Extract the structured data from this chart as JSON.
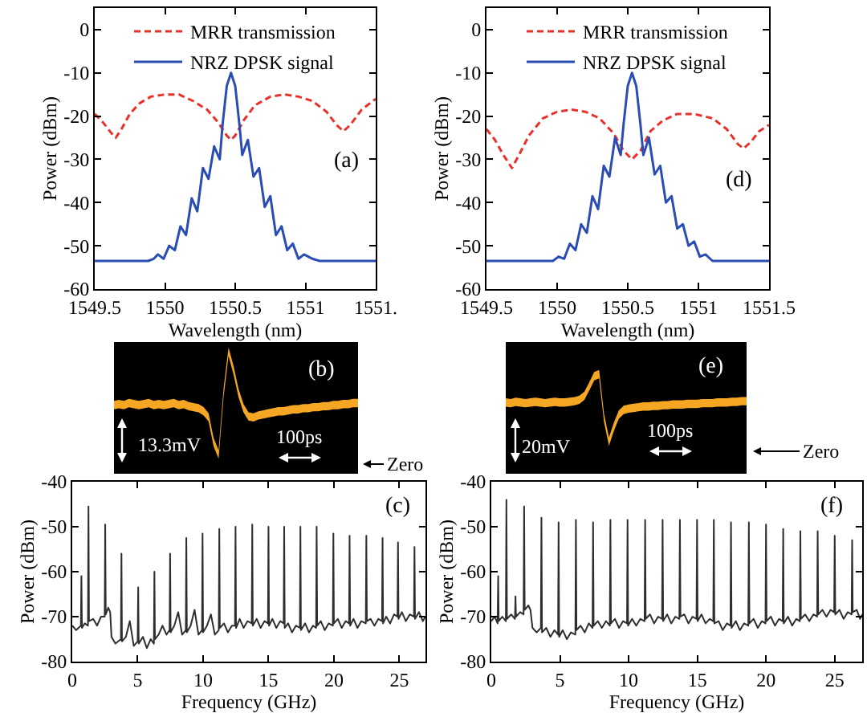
{
  "chart_data": [
    {
      "type": "line",
      "xlabel": "Wavelength (nm)",
      "ylabel": "Power (dBm)",
      "xlim": [
        1549.5,
        1551.5
      ],
      "xticks": [
        1549.5,
        1550,
        1550.5,
        1551,
        {
          "value": 1551.5,
          "label": "1551."
        }
      ],
      "ylim": [
        -60,
        5
      ],
      "yticks": [
        -60,
        -50,
        -40,
        -30,
        -20,
        -10,
        0
      ],
      "legend": "top",
      "annotations": [
        "(a)"
      ],
      "series": [
        {
          "name": "MRR transmission",
          "color": "#e8312a",
          "line_style": "dashed",
          "x": [
            1549.5,
            1549.56,
            1549.62,
            1549.65,
            1549.69,
            1549.75,
            1549.82,
            1549.9,
            1550.0,
            1550.1,
            1550.2,
            1550.3,
            1550.38,
            1550.44,
            1550.47,
            1550.5,
            1550.56,
            1550.64,
            1550.75,
            1550.85,
            1550.95,
            1551.05,
            1551.15,
            1551.22,
            1551.27,
            1551.32,
            1551.4,
            1551.5
          ],
          "values": [
            -19.5,
            -21.5,
            -24,
            -25,
            -23,
            -19.5,
            -17,
            -15.5,
            -15,
            -15,
            -16.5,
            -18.5,
            -21.5,
            -24.5,
            -25.5,
            -24.5,
            -21,
            -17.5,
            -15.5,
            -15,
            -15.5,
            -16.5,
            -19,
            -22,
            -23.5,
            -22,
            -18.5,
            -16
          ]
        },
        {
          "name": "NRZ DPSK signal",
          "color": "#2a4db3",
          "line_style": "solid",
          "x": [
            1549.5,
            1549.88,
            1549.92,
            1549.95,
            1549.99,
            1550.03,
            1550.07,
            1550.11,
            1550.15,
            1550.19,
            1550.23,
            1550.27,
            1550.31,
            1550.35,
            1550.39,
            1550.41,
            1550.44,
            1550.47,
            1550.5,
            1550.53,
            1550.55,
            1550.59,
            1550.63,
            1550.67,
            1550.71,
            1550.75,
            1550.79,
            1550.83,
            1550.87,
            1550.91,
            1550.95,
            1550.99,
            1551.05,
            1551.1,
            1551.5
          ],
          "values": [
            -53.5,
            -53.5,
            -53,
            -52,
            -53,
            -50,
            -51,
            -45.5,
            -47.5,
            -39,
            -42,
            -32,
            -34.5,
            -27,
            -30,
            -22,
            -13,
            -10,
            -13,
            -22,
            -29,
            -25.5,
            -34,
            -32,
            -41,
            -38.5,
            -47.5,
            -45.5,
            -51,
            -49.5,
            -53,
            -52,
            -53,
            -53.5,
            -53.5
          ]
        }
      ]
    },
    {
      "type": "line",
      "xlabel": "Wavelength (nm)",
      "ylabel": "Power (dBm)",
      "xlim": [
        1549.5,
        1551.5
      ],
      "xticks": [
        1549.5,
        1550,
        1550.5,
        1551,
        1551.5
      ],
      "ylim": [
        -60,
        5
      ],
      "yticks": [
        -60,
        -50,
        -40,
        -30,
        -20,
        -10,
        0
      ],
      "legend": "top",
      "annotations": [
        "(d)"
      ],
      "series": [
        {
          "name": "MRR transmission",
          "color": "#e8312a",
          "line_style": "dashed",
          "x": [
            1549.5,
            1549.56,
            1549.62,
            1549.68,
            1549.73,
            1549.8,
            1549.9,
            1550.0,
            1550.1,
            1550.2,
            1550.3,
            1550.4,
            1550.47,
            1550.53,
            1550.59,
            1550.66,
            1550.75,
            1550.85,
            1550.97,
            1551.1,
            1551.2,
            1551.28,
            1551.32,
            1551.37,
            1551.43,
            1551.5
          ],
          "values": [
            -23,
            -25.5,
            -29,
            -32,
            -29,
            -24.5,
            -20.5,
            -19,
            -18.5,
            -19,
            -20.5,
            -24,
            -28,
            -30,
            -28,
            -23.5,
            -21,
            -19.5,
            -19.5,
            -20.5,
            -23,
            -26.5,
            -27.5,
            -26,
            -23.5,
            -22
          ]
        },
        {
          "name": "NRZ DPSK signal",
          "color": "#2a4db3",
          "line_style": "solid",
          "x": [
            1549.5,
            1549.93,
            1549.97,
            1550.01,
            1550.05,
            1550.09,
            1550.13,
            1550.17,
            1550.21,
            1550.25,
            1550.29,
            1550.33,
            1550.37,
            1550.41,
            1550.45,
            1550.47,
            1550.5,
            1550.53,
            1550.56,
            1550.59,
            1550.61,
            1550.65,
            1550.69,
            1550.73,
            1550.77,
            1550.81,
            1550.85,
            1550.89,
            1550.93,
            1550.97,
            1551.01,
            1551.05,
            1551.1,
            1551.5
          ],
          "values": [
            -53.5,
            -53.5,
            -53.5,
            -52.5,
            -53,
            -49.5,
            -51,
            -45,
            -47,
            -38.5,
            -41.5,
            -31.5,
            -34,
            -25,
            -29,
            -22,
            -13,
            -10,
            -13,
            -22,
            -29,
            -25,
            -33.5,
            -31.5,
            -40,
            -38.5,
            -46,
            -45,
            -50,
            -49,
            -52.5,
            -52,
            -53.5,
            -53.5
          ]
        }
      ]
    },
    {
      "type": "other",
      "annotations": [
        "(b)",
        "13.3mV",
        "100ps",
        "Zero"
      ]
    },
    {
      "type": "other",
      "annotations": [
        "(e)",
        "20mV",
        "100ps",
        "Zero"
      ]
    },
    {
      "type": "line",
      "xlabel": "Frequency (GHz)",
      "ylabel": "Power (dBm)",
      "xlim": [
        0,
        27
      ],
      "xticks": [
        0,
        5,
        10,
        15,
        20,
        25
      ],
      "ylim": [
        -80,
        -40
      ],
      "yticks": [
        -80,
        -70,
        -60,
        -50,
        -40
      ],
      "annotations": [
        "(c)"
      ],
      "color": "#2e2e2e",
      "x": [
        0,
        0.3,
        0.66,
        0.7,
        0.74,
        0.95,
        1.2,
        1.24,
        1.28,
        1.6,
        1.9,
        2.2,
        2.48,
        2.52,
        2.56,
        2.75,
        2.9,
        3.0,
        3.3,
        3.72,
        3.76,
        3.8,
        4.1,
        4.4,
        4.7,
        5.0,
        5.04,
        5.08,
        5.4,
        5.7,
        6.0,
        6.24,
        6.28,
        6.32,
        6.6,
        6.9,
        7.2,
        7.44,
        7.48,
        7.52,
        7.8,
        8.1,
        8.4,
        8.68,
        8.72,
        8.76,
        9.05,
        9.35,
        9.65,
        9.92,
        9.96,
        10.0,
        10.3,
        10.6,
        10.9,
        11.2,
        11.24,
        11.28,
        11.6,
        11.9,
        12.2,
        12.44,
        12.48,
        12.52,
        12.8,
        13.1,
        13.4,
        13.72,
        13.76,
        13.8,
        14.1,
        14.4,
        14.7,
        14.96,
        15.0,
        15.04,
        15.3,
        15.6,
        15.9,
        16.16,
        16.2,
        16.24,
        16.5,
        16.8,
        17.1,
        17.4,
        17.44,
        17.48,
        17.8,
        18.1,
        18.4,
        18.64,
        18.68,
        18.72,
        19.0,
        19.3,
        19.6,
        19.92,
        19.96,
        20.0,
        20.3,
        20.6,
        20.9,
        21.16,
        21.2,
        21.24,
        21.5,
        21.8,
        22.1,
        22.44,
        22.48,
        22.52,
        22.8,
        23.1,
        23.4,
        23.68,
        23.72,
        23.76,
        24.0,
        24.3,
        24.6,
        24.86,
        24.9,
        24.94,
        25.2,
        25.5,
        25.8,
        26.12,
        26.16,
        26.2,
        26.5,
        26.8,
        27.0
      ],
      "values": [
        -72,
        -73,
        -72,
        -61,
        -72.5,
        -71.5,
        -72,
        -45.5,
        -71,
        -70.5,
        -72,
        -70,
        -70,
        -49.5,
        -69.5,
        -68,
        -69,
        -74.5,
        -76,
        -75,
        -56,
        -75.5,
        -74.5,
        -71,
        -76.5,
        -75.5,
        -63.5,
        -76,
        -74.5,
        -77,
        -75,
        -76,
        -60,
        -75,
        -74,
        -72,
        -74,
        -73,
        -56,
        -73.5,
        -72,
        -69,
        -74,
        -73,
        -52.5,
        -73.5,
        -72,
        -68.5,
        -74,
        -73,
        -51.5,
        -73.5,
        -72,
        -69.5,
        -74,
        -73,
        -50.5,
        -72.5,
        -71.5,
        -73.5,
        -72,
        -72,
        -50,
        -72.5,
        -70.5,
        -72.5,
        -71,
        -71.5,
        -49.5,
        -72,
        -70.5,
        -72.5,
        -71,
        -71.5,
        -50,
        -72,
        -70.5,
        -72.5,
        -71,
        -71.5,
        -50,
        -72.5,
        -71.5,
        -73.5,
        -72,
        -72.5,
        -50,
        -73,
        -71.5,
        -73.5,
        -72,
        -72.5,
        -50,
        -72,
        -71,
        -73,
        -71.5,
        -72,
        -51.5,
        -71.5,
        -70.5,
        -72.5,
        -71,
        -71.5,
        -52,
        -72,
        -70.5,
        -72.5,
        -71,
        -71.5,
        -52,
        -71,
        -70.5,
        -72,
        -70.5,
        -71,
        -52.5,
        -71.5,
        -70,
        -71.5,
        -69.5,
        -70,
        -53.5,
        -70.5,
        -69,
        -71,
        -69.5,
        -70,
        -54.5,
        -70.5,
        -69,
        -71,
        -70
      ]
    },
    {
      "type": "line",
      "xlabel": "Frequency (GHz)",
      "ylabel": "Power (dBm)",
      "xlim": [
        0,
        27
      ],
      "xticks": [
        0,
        5,
        10,
        15,
        20,
        25
      ],
      "ylim": [
        -80,
        -40
      ],
      "yticks": [
        -80,
        -70,
        -60,
        -50,
        -40
      ],
      "annotations": [
        "(f)"
      ],
      "color": "#2e2e2e",
      "x": [
        0,
        0.25,
        0.46,
        0.5,
        0.54,
        0.8,
        1.06,
        1.1,
        1.14,
        1.45,
        1.72,
        1.76,
        1.8,
        2.1,
        2.35,
        2.39,
        2.43,
        2.7,
        2.85,
        3.0,
        3.3,
        3.61,
        3.65,
        3.69,
        4.0,
        4.3,
        4.6,
        4.86,
        4.9,
        4.94,
        5.2,
        5.5,
        5.8,
        6.12,
        6.16,
        6.2,
        6.5,
        6.8,
        7.1,
        7.37,
        7.41,
        7.45,
        7.75,
        8.05,
        8.35,
        8.63,
        8.67,
        8.71,
        9.0,
        9.3,
        9.6,
        9.88,
        9.92,
        9.96,
        10.25,
        10.55,
        10.85,
        11.16,
        11.2,
        11.24,
        11.55,
        11.85,
        12.15,
        12.43,
        12.47,
        12.51,
        12.8,
        13.1,
        13.4,
        13.69,
        13.73,
        13.77,
        14.05,
        14.35,
        14.65,
        14.94,
        14.98,
        15.02,
        15.3,
        15.6,
        15.9,
        16.16,
        16.2,
        16.24,
        16.55,
        16.85,
        17.15,
        17.41,
        17.45,
        17.49,
        17.8,
        18.1,
        18.4,
        18.71,
        18.75,
        18.79,
        19.1,
        19.4,
        19.7,
        19.96,
        20.0,
        20.04,
        20.35,
        20.65,
        20.95,
        21.21,
        21.25,
        21.29,
        21.6,
        21.9,
        22.2,
        22.46,
        22.5,
        22.54,
        22.85,
        23.15,
        23.45,
        23.72,
        23.76,
        23.8,
        24.1,
        24.4,
        24.7,
        24.96,
        25.0,
        25.04,
        25.35,
        25.65,
        25.95,
        26.23,
        26.27,
        26.31,
        26.6,
        26.85,
        27.0
      ],
      "values": [
        -71,
        -70,
        -71.5,
        -61,
        -71,
        -70,
        -71,
        -44,
        -70.5,
        -69.5,
        -70.5,
        -65.5,
        -70,
        -69,
        -69.5,
        -45.5,
        -68.5,
        -67.5,
        -68.5,
        -72.5,
        -73.5,
        -72.5,
        -48,
        -73.5,
        -72.5,
        -74.5,
        -73,
        -74,
        -49,
        -74.5,
        -73,
        -75,
        -73.5,
        -74,
        -48.5,
        -73,
        -72,
        -73.5,
        -71.5,
        -72.5,
        -49,
        -72,
        -71,
        -72.5,
        -71,
        -72,
        -48.5,
        -71.5,
        -70.5,
        -72.5,
        -71,
        -71.5,
        -48.5,
        -72,
        -70.5,
        -72,
        -70.5,
        -71,
        -48.5,
        -70.5,
        -69.5,
        -71.5,
        -70,
        -70.5,
        -48.5,
        -71,
        -69.5,
        -71.5,
        -70,
        -70.5,
        -48.5,
        -70,
        -69.5,
        -71.5,
        -70,
        -70.5,
        -48.5,
        -71,
        -69.5,
        -71.5,
        -70.5,
        -71,
        -48.5,
        -71.5,
        -71,
        -73,
        -71.5,
        -72,
        -49,
        -72.5,
        -71,
        -73,
        -71.5,
        -72,
        -49,
        -71.5,
        -70.5,
        -72.5,
        -71,
        -71.5,
        -49.5,
        -71,
        -70,
        -72,
        -70.5,
        -71,
        -50.5,
        -71.5,
        -70,
        -72,
        -70.5,
        -71,
        -51,
        -70.5,
        -69.5,
        -71,
        -69.5,
        -70,
        -51,
        -69.5,
        -68.5,
        -70,
        -68.5,
        -69,
        -52,
        -69.5,
        -68.5,
        -70.5,
        -69,
        -69.5,
        -53,
        -69,
        -68.5,
        -70.5,
        -69.5
      ]
    }
  ]
}
